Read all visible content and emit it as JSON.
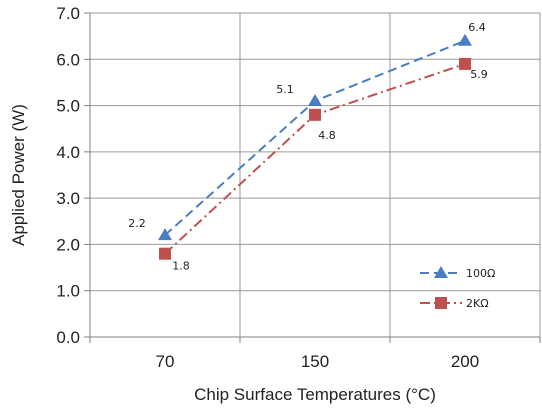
{
  "chart_data": {
    "type": "line",
    "title": "",
    "xlabel": "Chip Surface Temperatures (°C)",
    "ylabel": "Applied Power (W)",
    "categories": [
      "70",
      "150",
      "200"
    ],
    "ylim": [
      0,
      7
    ],
    "yticks": [
      "0.0",
      "1.0",
      "2.0",
      "3.0",
      "4.0",
      "5.0",
      "6.0",
      "7.0"
    ],
    "grid": true,
    "legend_position": "bottom-right",
    "series": [
      {
        "name": "100Ω",
        "values": [
          2.2,
          5.1,
          6.4
        ],
        "labels": [
          "2.2",
          "5.1",
          "6.4"
        ],
        "color": "#4a7ec1",
        "marker": "triangle",
        "line": "dashed"
      },
      {
        "name": "2KΩ",
        "values": [
          1.8,
          4.8,
          5.9
        ],
        "labels": [
          "1.8",
          "4.8",
          "5.9"
        ],
        "color": "#c0504d",
        "marker": "square",
        "line": "dash-dot"
      }
    ]
  }
}
